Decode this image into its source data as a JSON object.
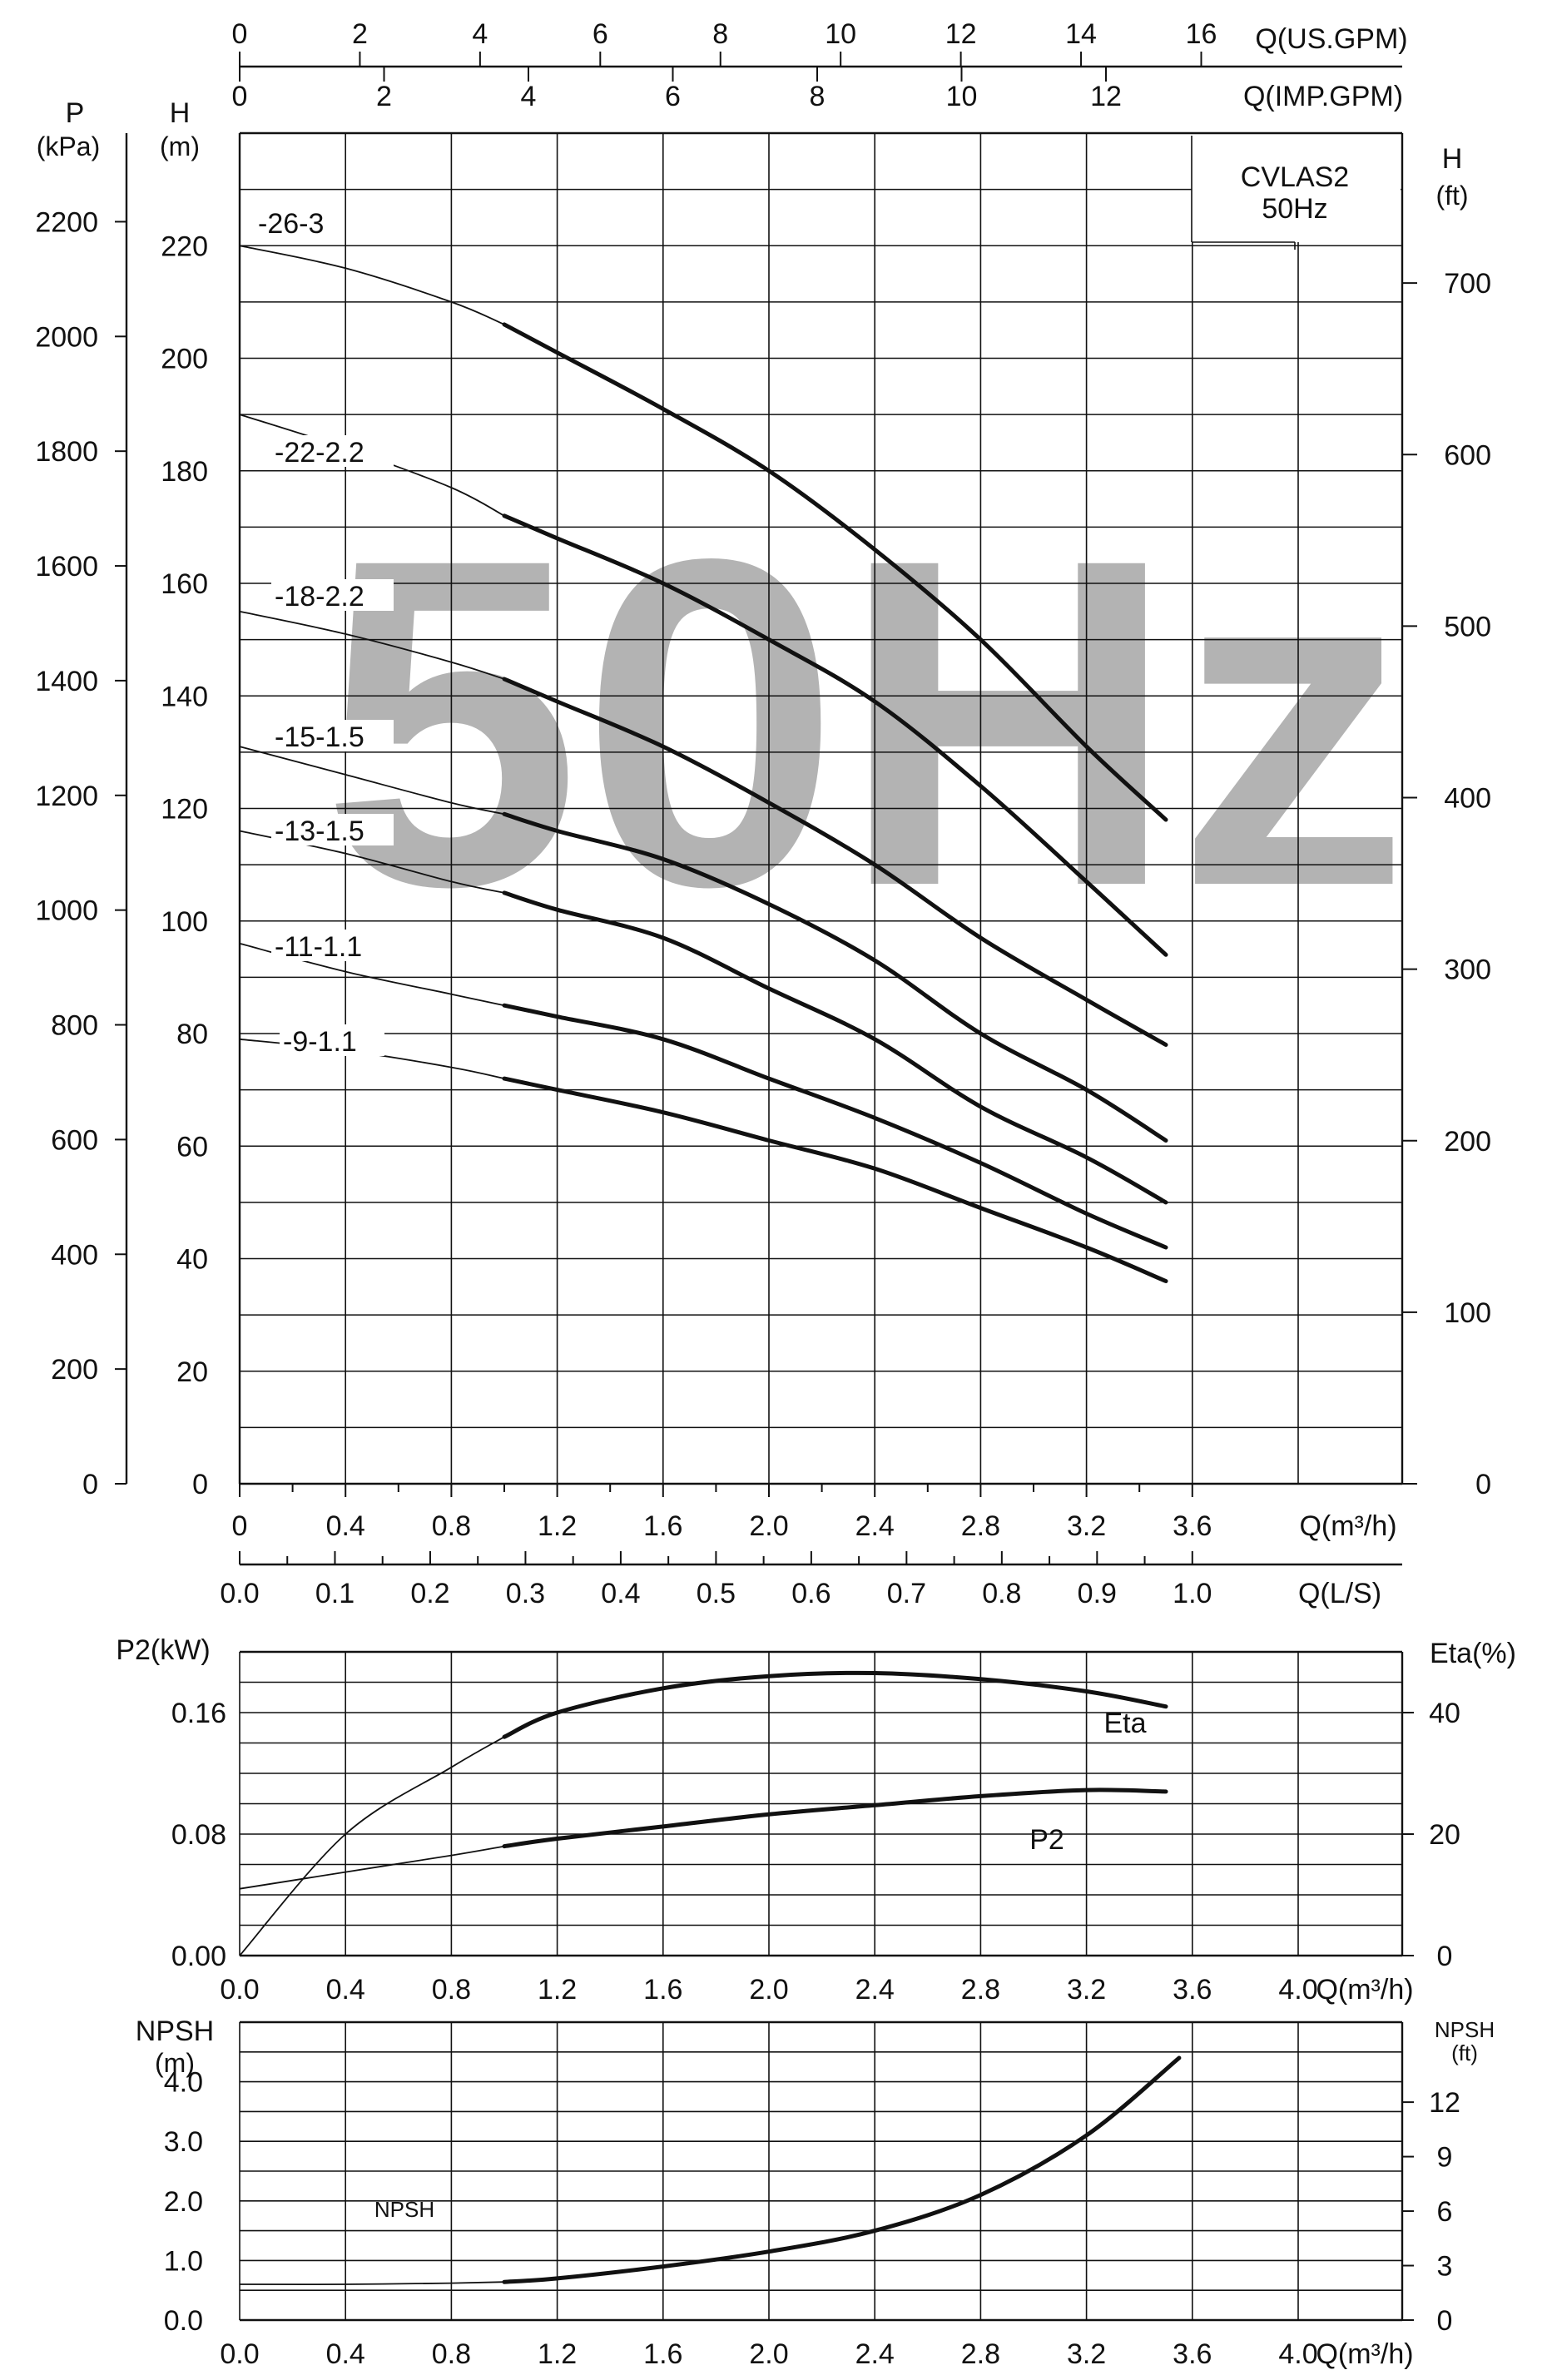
{
  "watermark": "50Hz",
  "colors": {
    "ink": "#111111",
    "watermark": "#b3b3b3",
    "background": "#ffffff"
  },
  "top_axes": {
    "us_gpm": {
      "label": "Q(US.GPM)",
      "ticks": [
        0,
        2,
        4,
        6,
        8,
        10,
        12,
        14,
        16
      ]
    },
    "imp_gpm": {
      "label": "Q(IMP.GPM)",
      "ticks": [
        0,
        2,
        4,
        6,
        8,
        10,
        12
      ]
    }
  },
  "bottom_axes": {
    "q_m3h": {
      "label": "Q(m³/h)",
      "ticks": [
        "0",
        "0.4",
        "0.8",
        "1.2",
        "1.6",
        "2.0",
        "2.4",
        "2.8",
        "3.2",
        "3.6"
      ]
    },
    "q_ls": {
      "label": "Q(L/S)",
      "ticks": [
        "0.0",
        "0.1",
        "0.2",
        "0.3",
        "0.4",
        "0.5",
        "0.6",
        "0.7",
        "0.8",
        "0.9",
        "1.0"
      ]
    }
  },
  "chart_data": [
    {
      "type": "line",
      "title": "CVLAS2",
      "subtitle": "50Hz",
      "xlabel": "Q(m³/h)",
      "ylabel": "H (m)",
      "y_label_top": "H",
      "y_label_unit": "(m)",
      "ylim": [
        0,
        240
      ],
      "xlim": [
        0,
        4.4
      ],
      "y_ticks": [
        0,
        20,
        40,
        60,
        80,
        100,
        120,
        140,
        160,
        180,
        200,
        220
      ],
      "left_axis": {
        "label": "P",
        "unit": "(kPa)",
        "ticks": [
          0,
          200,
          400,
          600,
          800,
          1000,
          1200,
          1400,
          1600,
          1800,
          2000,
          2200
        ]
      },
      "right_axis": {
        "label": "H",
        "unit": "(ft)",
        "ticks": [
          0,
          100,
          200,
          300,
          400,
          500,
          600,
          700
        ]
      },
      "grid": true,
      "series": [
        {
          "name": "-26-3",
          "x": [
            0,
            0.4,
            0.8,
            1.0,
            1.2,
            1.6,
            2.0,
            2.4,
            2.8,
            3.2,
            3.5
          ],
          "y": [
            220,
            216,
            210,
            206,
            201,
            191,
            180,
            166,
            150,
            131,
            118
          ]
        },
        {
          "name": "-22-2.2",
          "x": [
            0,
            0.4,
            0.8,
            1.0,
            1.2,
            1.6,
            2.0,
            2.4,
            2.8,
            3.2,
            3.5
          ],
          "y": [
            190,
            184,
            177,
            172,
            168,
            160,
            150,
            139,
            124,
            107,
            94
          ]
        },
        {
          "name": "-18-2.2",
          "x": [
            0,
            0.4,
            0.8,
            1.0,
            1.2,
            1.6,
            2.0,
            2.4,
            2.8,
            3.2,
            3.5
          ],
          "y": [
            155,
            151,
            146,
            143,
            139,
            131,
            121,
            110,
            97,
            86,
            78
          ]
        },
        {
          "name": "-15-1.5",
          "x": [
            0,
            0.4,
            0.8,
            1.0,
            1.2,
            1.6,
            2.0,
            2.4,
            2.8,
            3.2,
            3.5
          ],
          "y": [
            131,
            126,
            121,
            119,
            116,
            111,
            103,
            93,
            80,
            70,
            61
          ]
        },
        {
          "name": "-13-1.5",
          "x": [
            0,
            0.4,
            0.8,
            1.0,
            1.2,
            1.6,
            2.0,
            2.4,
            2.8,
            3.2,
            3.5
          ],
          "y": [
            116,
            112,
            107,
            105,
            102,
            97,
            88,
            79,
            67,
            58,
            50
          ]
        },
        {
          "name": "-11-1.1",
          "x": [
            0,
            0.4,
            0.8,
            1.0,
            1.2,
            1.6,
            2.0,
            2.4,
            2.8,
            3.2,
            3.5
          ],
          "y": [
            96,
            91,
            87,
            85,
            83,
            79,
            72,
            65,
            57,
            48,
            42
          ]
        },
        {
          "name": "-9-1.1",
          "x": [
            0,
            0.4,
            0.8,
            1.0,
            1.2,
            1.6,
            2.0,
            2.4,
            2.8,
            3.2,
            3.5
          ],
          "y": [
            79,
            77,
            74,
            72,
            70,
            66,
            61,
            56,
            49,
            42,
            36
          ]
        }
      ]
    },
    {
      "type": "line",
      "xlabel": "Q(m³/h)",
      "ylabel": "P2(kW)",
      "right_label": "Eta(%)",
      "ylim": [
        0,
        0.2
      ],
      "xlim": [
        0,
        4.4
      ],
      "y_ticks": [
        "0.00",
        "0.08",
        "0.16"
      ],
      "x_ticks": [
        "0.0",
        "0.4",
        "0.8",
        "1.2",
        "1.6",
        "2.0",
        "2.4",
        "2.8",
        "3.2",
        "3.6",
        "4.0"
      ],
      "right_ticks": [
        0,
        20,
        40
      ],
      "grid": true,
      "series": [
        {
          "name": "Eta",
          "axis": "right",
          "x": [
            0,
            0.4,
            0.8,
            1.0,
            1.2,
            1.6,
            2.0,
            2.4,
            2.8,
            3.2,
            3.5
          ],
          "y": [
            0,
            20,
            31,
            36,
            40,
            44,
            46,
            46.5,
            45.5,
            43.5,
            41
          ]
        },
        {
          "name": "P2",
          "axis": "left",
          "x": [
            0,
            0.4,
            0.8,
            1.0,
            1.2,
            1.6,
            2.0,
            2.4,
            2.8,
            3.2,
            3.5
          ],
          "y": [
            0.044,
            0.055,
            0.066,
            0.072,
            0.077,
            0.085,
            0.093,
            0.099,
            0.105,
            0.109,
            0.108
          ]
        }
      ]
    },
    {
      "type": "line",
      "xlabel": "Q(m³/h)",
      "ylabel": "NPSH",
      "y_unit": "(m)",
      "right_label": "NPSH",
      "right_unit": "(ft)",
      "ylim": [
        0,
        5
      ],
      "xlim": [
        0,
        4.4
      ],
      "y_ticks": [
        "0.0",
        "1.0",
        "2.0",
        "3.0",
        "4.0"
      ],
      "x_ticks": [
        "0.0",
        "0.4",
        "0.8",
        "1.2",
        "1.6",
        "2.0",
        "2.4",
        "2.8",
        "3.2",
        "3.6",
        "4.0"
      ],
      "right_ticks": [
        0,
        3,
        6,
        9,
        12
      ],
      "grid": true,
      "series": [
        {
          "name": "NPSH",
          "x": [
            0,
            0.4,
            0.8,
            1.0,
            1.2,
            1.6,
            2.0,
            2.4,
            2.8,
            3.2,
            3.55
          ],
          "y": [
            0.6,
            0.6,
            0.62,
            0.64,
            0.7,
            0.9,
            1.15,
            1.5,
            2.1,
            3.1,
            4.4
          ]
        }
      ]
    }
  ]
}
